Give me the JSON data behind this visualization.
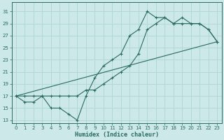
{
  "xlabel": "Humidex (Indice chaleur)",
  "bg_color": "#cce8e8",
  "grid_color": "#b0d8d8",
  "line_color": "#2a6b5e",
  "xlim": [
    -0.5,
    23.5
  ],
  "ylim": [
    12.5,
    32.5
  ],
  "xticks": [
    0,
    1,
    2,
    3,
    4,
    5,
    6,
    7,
    8,
    9,
    10,
    11,
    12,
    13,
    14,
    15,
    16,
    17,
    18,
    19,
    20,
    21,
    22,
    23
  ],
  "yticks": [
    13,
    15,
    17,
    19,
    21,
    23,
    25,
    27,
    29,
    31
  ],
  "line1_x": [
    0,
    1,
    2,
    3,
    4,
    5,
    6,
    7,
    8,
    9,
    10,
    11,
    12,
    13,
    14,
    15,
    16,
    17,
    18,
    19,
    20,
    21,
    22,
    23
  ],
  "line1_y": [
    17,
    16,
    16,
    17,
    15,
    15,
    14,
    13,
    17,
    20,
    22,
    23,
    24,
    27,
    28,
    31,
    30,
    30,
    29,
    30,
    29,
    29,
    28,
    26
  ],
  "line2_x": [
    0,
    1,
    2,
    3,
    4,
    5,
    6,
    7,
    8,
    9,
    10,
    11,
    12,
    13,
    14,
    15,
    16,
    17,
    18,
    19,
    20,
    21,
    22,
    23
  ],
  "line2_y": [
    17,
    17,
    17,
    17,
    17,
    17,
    17,
    17,
    18,
    18,
    19,
    20,
    21,
    22,
    24,
    28,
    29,
    30,
    29,
    29,
    29,
    29,
    28,
    26
  ],
  "line3_x": [
    0,
    23
  ],
  "line3_y": [
    17,
    26
  ]
}
